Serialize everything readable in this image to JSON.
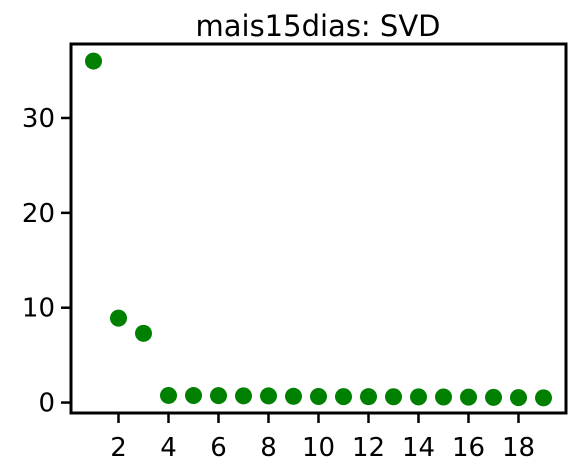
{
  "chart_data": {
    "type": "scatter",
    "title": "mais15dias: SVD",
    "xlabel": "",
    "ylabel": "",
    "grid": false,
    "xlim": [
      0.1,
      19.9
    ],
    "ylim": [
      -1.1,
      37.8
    ],
    "xticks": [
      2,
      4,
      6,
      8,
      10,
      12,
      14,
      16,
      18
    ],
    "yticks": [
      0,
      10,
      20,
      30
    ],
    "marker_color": "#008000",
    "series": [
      {
        "x": [
          1,
          2,
          3,
          4,
          5,
          6,
          7,
          8,
          9,
          10,
          11,
          12,
          13,
          14,
          15,
          16,
          17,
          18,
          19
        ],
        "y": [
          36.0,
          8.9,
          7.3,
          0.75,
          0.74,
          0.73,
          0.71,
          0.7,
          0.66,
          0.64,
          0.63,
          0.62,
          0.61,
          0.6,
          0.59,
          0.57,
          0.55,
          0.52,
          0.5
        ]
      }
    ]
  }
}
